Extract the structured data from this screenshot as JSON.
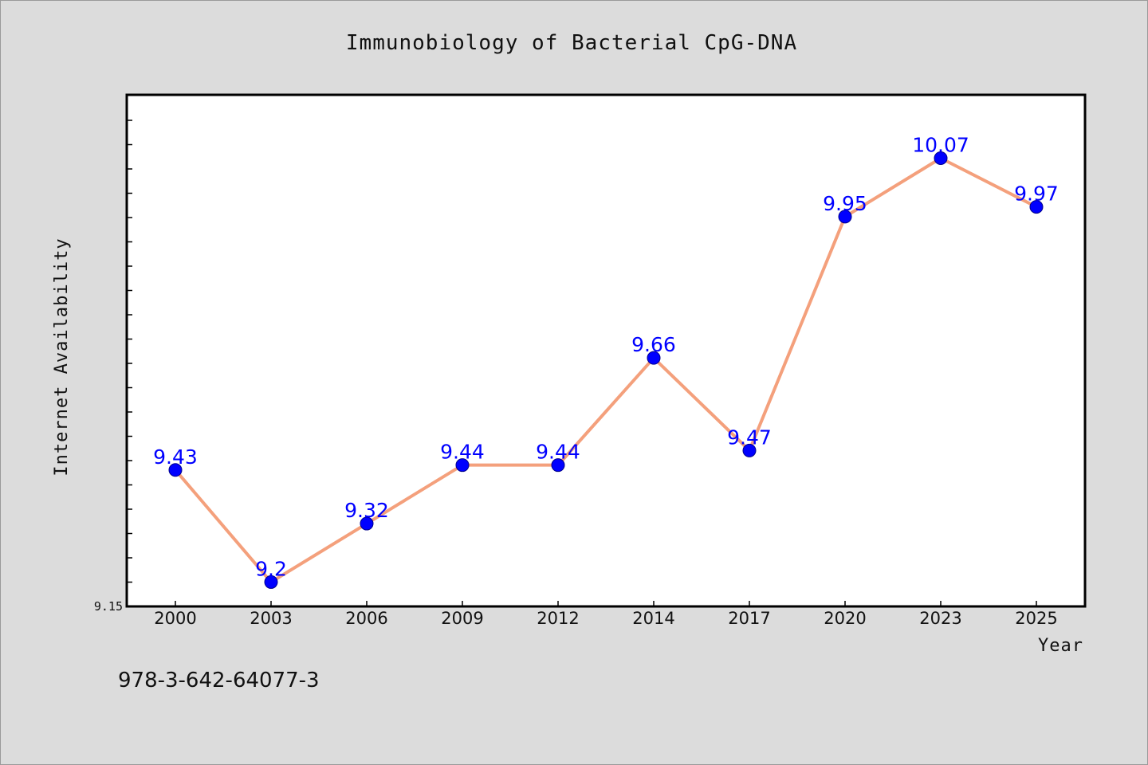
{
  "chart_data": {
    "type": "line",
    "title": "Immunobiology of Bacterial CpG-DNA",
    "xlabel": "Year",
    "ylabel": "Internet Availability",
    "categories": [
      "2000",
      "2003",
      "2006",
      "2009",
      "2012",
      "2014",
      "2017",
      "2020",
      "2023",
      "2025"
    ],
    "series": [
      {
        "values": [
          9.43,
          9.2,
          9.32,
          9.44,
          9.44,
          9.66,
          9.47,
          9.95,
          10.07,
          9.97
        ],
        "labels": [
          "9.43",
          "9.2",
          "9.32",
          "9.44",
          "9.44",
          "9.66",
          "9.47",
          "9.95",
          "10.07",
          "9.97"
        ],
        "line_color": "#f4a07c",
        "marker_color": "#0000ff"
      }
    ],
    "ylim": [
      9.15,
      10.2
    ],
    "yticks": [
      "9.15"
    ],
    "grid": false,
    "legend": "none"
  },
  "footer": {
    "isbn": "978-3-642-64077-3"
  },
  "colors": {
    "background": "#dcdcdc",
    "plot_background": "#ffffff",
    "line": "#f4a07c",
    "marker": "#0000ff",
    "data_label": "#0000ff"
  }
}
